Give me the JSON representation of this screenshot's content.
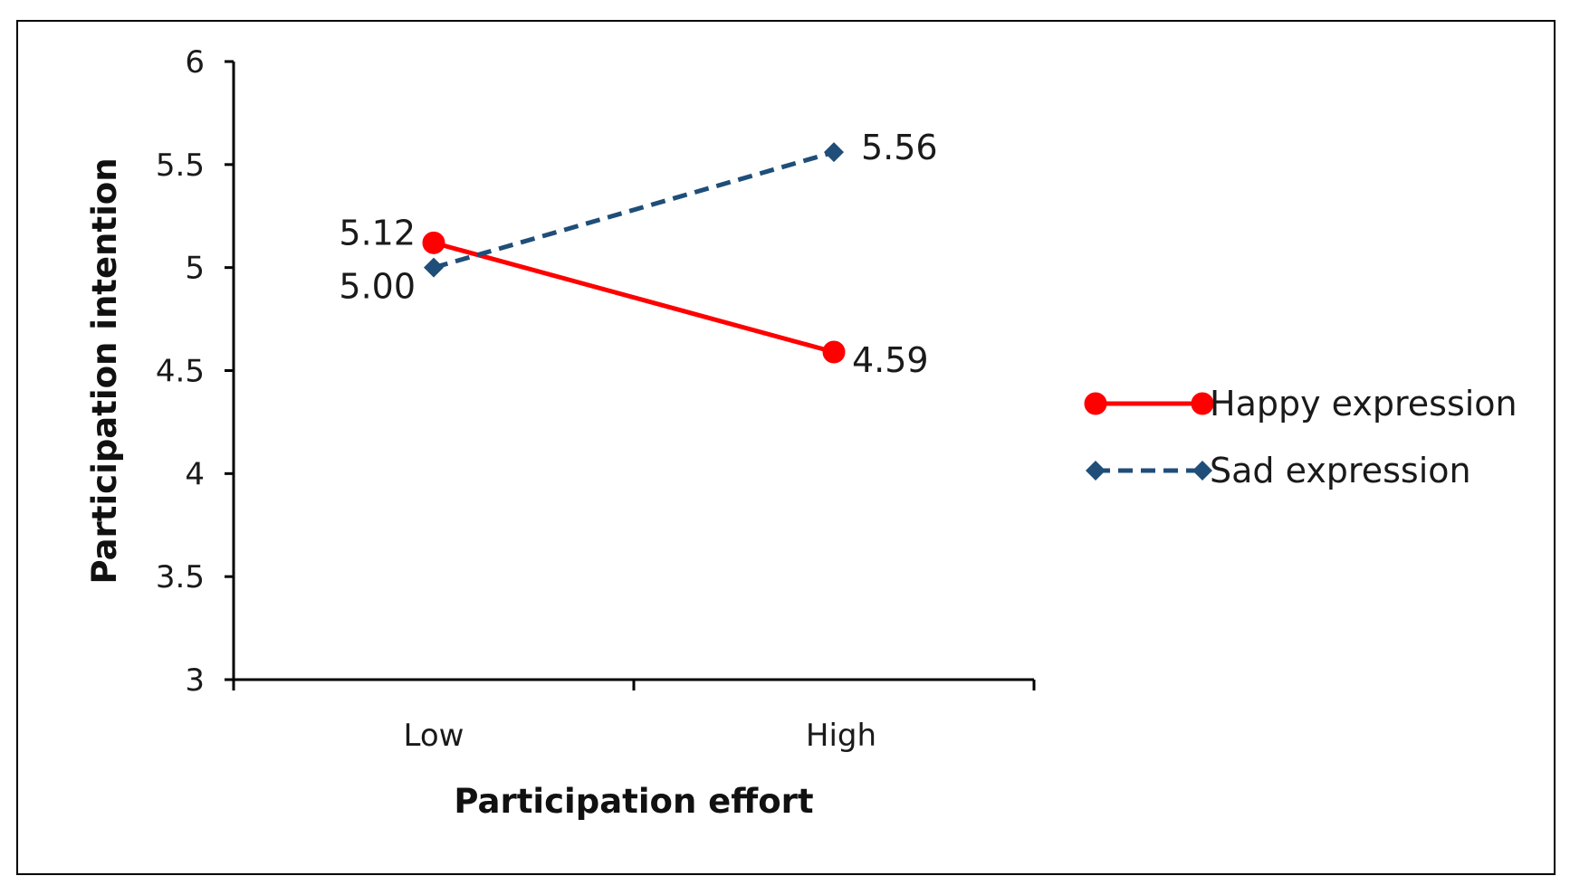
{
  "chart_data": {
    "type": "line",
    "title": "",
    "xlabel": "Participation effort",
    "ylabel": "Participation intention",
    "categories": [
      "Low",
      "High"
    ],
    "ylim": [
      3,
      6
    ],
    "yticks": [
      3,
      3.5,
      4,
      4.5,
      5,
      5.5,
      6
    ],
    "ytick_labels": [
      "3",
      "3.5",
      "4",
      "4.5",
      "5",
      "5.5",
      "6"
    ],
    "grid": false,
    "legend_position": "right",
    "series": [
      {
        "name": "Happy expression",
        "values": [
          5.12,
          4.59
        ],
        "labels": [
          "5.12",
          "4.59"
        ],
        "color": "#ff0000",
        "line_style": "solid",
        "marker": "circle"
      },
      {
        "name": "Sad expression",
        "values": [
          5.0,
          5.56
        ],
        "labels": [
          "5.00",
          "5.56"
        ],
        "color": "#1f4e79",
        "line_style": "dashed",
        "marker": "diamond"
      }
    ]
  }
}
